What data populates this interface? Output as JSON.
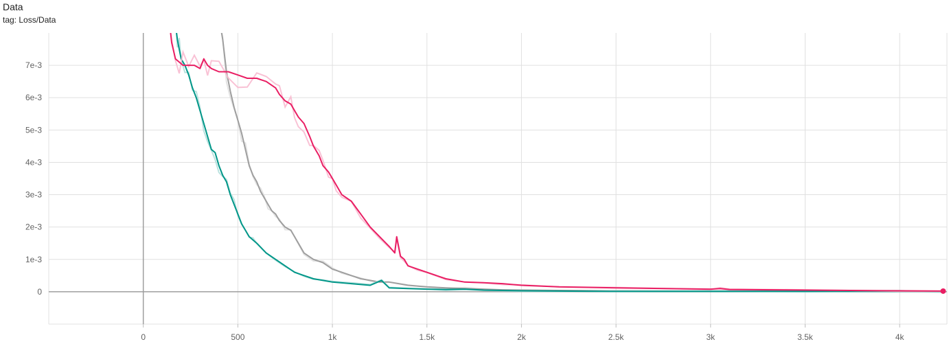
{
  "card": {
    "title": "Data",
    "subtitle": "tag: Loss/Data"
  },
  "chart_data": {
    "type": "line",
    "xlim": [
      -500,
      4250
    ],
    "ylim": [
      -0.001,
      0.008
    ],
    "grid": true,
    "x_ticks": [
      {
        "v": 0,
        "label": "0"
      },
      {
        "v": 500,
        "label": "500"
      },
      {
        "v": 1000,
        "label": "1k"
      },
      {
        "v": 1500,
        "label": "1.5k"
      },
      {
        "v": 2000,
        "label": "2k"
      },
      {
        "v": 2500,
        "label": "2.5k"
      },
      {
        "v": 3000,
        "label": "3k"
      },
      {
        "v": 3500,
        "label": "3.5k"
      },
      {
        "v": 4000,
        "label": "4k"
      }
    ],
    "y_ticks": [
      {
        "v": 0,
        "label": "0"
      },
      {
        "v": 0.001,
        "label": "1e-3"
      },
      {
        "v": 0.002,
        "label": "2e-3"
      },
      {
        "v": 0.003,
        "label": "3e-3"
      },
      {
        "v": 0.004,
        "label": "4e-3"
      },
      {
        "v": 0.005,
        "label": "5e-3"
      },
      {
        "v": 0.006,
        "label": "6e-3"
      },
      {
        "v": 0.007,
        "label": "7e-3"
      }
    ],
    "series": [
      {
        "color": "#9e9e9e",
        "raw_color": "#e0e0e0",
        "x": [
          400,
          420,
          440,
          460,
          480,
          500,
          520,
          540,
          560,
          580,
          600,
          620,
          640,
          660,
          680,
          700,
          720,
          750,
          780,
          800,
          850,
          900,
          950,
          1000,
          1050,
          1100,
          1150,
          1200,
          1250,
          1300,
          1400,
          1500,
          1600,
          1700,
          1800,
          1900,
          2000,
          2200,
          2500,
          3000,
          3500,
          4000,
          4230
        ],
        "y": [
          0.0085,
          0.0078,
          0.0068,
          0.0062,
          0.0057,
          0.0053,
          0.0049,
          0.0044,
          0.0039,
          0.0036,
          0.0034,
          0.0031,
          0.0029,
          0.0027,
          0.0025,
          0.0024,
          0.0022,
          0.002,
          0.0019,
          0.0017,
          0.0012,
          0.001,
          0.0009,
          0.0007,
          0.0006,
          0.0005,
          0.0004,
          0.00035,
          0.0003,
          0.0003,
          0.0002,
          0.00015,
          0.00012,
          0.0001,
          8e-05,
          6e-05,
          5e-05,
          4e-05,
          3e-05,
          2e-05,
          2e-05,
          1e-05,
          1e-05
        ]
      },
      {
        "color": "#009688",
        "raw_color": "#b2dfdb",
        "x": [
          165,
          180,
          190,
          200,
          220,
          240,
          260,
          280,
          300,
          320,
          340,
          360,
          380,
          400,
          420,
          440,
          460,
          480,
          500,
          520,
          540,
          560,
          580,
          600,
          650,
          700,
          750,
          800,
          850,
          900,
          950,
          1000,
          1100,
          1200,
          1260,
          1300,
          1400,
          1500,
          1600,
          1700,
          1800,
          2000,
          2200,
          2500,
          3000,
          3500,
          4000,
          4230
        ],
        "y": [
          0.0085,
          0.0078,
          0.0075,
          0.0072,
          0.007,
          0.0067,
          0.0063,
          0.006,
          0.0056,
          0.0052,
          0.0048,
          0.0044,
          0.0043,
          0.0039,
          0.0036,
          0.0034,
          0.003,
          0.0027,
          0.0024,
          0.0021,
          0.0019,
          0.0017,
          0.0016,
          0.0015,
          0.0012,
          0.001,
          0.0008,
          0.0006,
          0.0005,
          0.0004,
          0.00035,
          0.0003,
          0.00025,
          0.0002,
          0.00035,
          0.00012,
          0.0001,
          8e-05,
          7e-05,
          8e-05,
          5e-05,
          3e-05,
          2e-05,
          1e-05,
          1e-05,
          1e-05,
          1e-05,
          1e-05
        ]
      },
      {
        "color": "#e91e63",
        "raw_color": "#f8bbd0",
        "x": [
          135,
          150,
          170,
          190,
          210,
          240,
          270,
          300,
          320,
          340,
          360,
          400,
          450,
          500,
          550,
          600,
          650,
          700,
          720,
          750,
          780,
          800,
          820,
          850,
          880,
          900,
          930,
          950,
          980,
          1000,
          1020,
          1050,
          1100,
          1150,
          1200,
          1250,
          1300,
          1330,
          1340,
          1360,
          1380,
          1400,
          1450,
          1500,
          1600,
          1700,
          1800,
          1900,
          2000,
          2200,
          2500,
          3000,
          3050,
          3100,
          3500,
          4000,
          4230
        ],
        "y": [
          0.0085,
          0.0077,
          0.0072,
          0.0071,
          0.007,
          0.007,
          0.007,
          0.0069,
          0.0072,
          0.007,
          0.0069,
          0.0068,
          0.0068,
          0.0067,
          0.0066,
          0.0066,
          0.0065,
          0.0063,
          0.0061,
          0.0059,
          0.0058,
          0.0056,
          0.0054,
          0.0052,
          0.0048,
          0.0045,
          0.0042,
          0.0039,
          0.0037,
          0.0035,
          0.0033,
          0.003,
          0.0028,
          0.0024,
          0.002,
          0.0017,
          0.0014,
          0.0012,
          0.0017,
          0.0011,
          0.001,
          0.0008,
          0.0007,
          0.0006,
          0.0004,
          0.0003,
          0.00028,
          0.00025,
          0.0002,
          0.00015,
          0.00012,
          8e-05,
          0.0001,
          7e-05,
          5e-05,
          3e-05,
          2e-05
        ]
      }
    ]
  }
}
